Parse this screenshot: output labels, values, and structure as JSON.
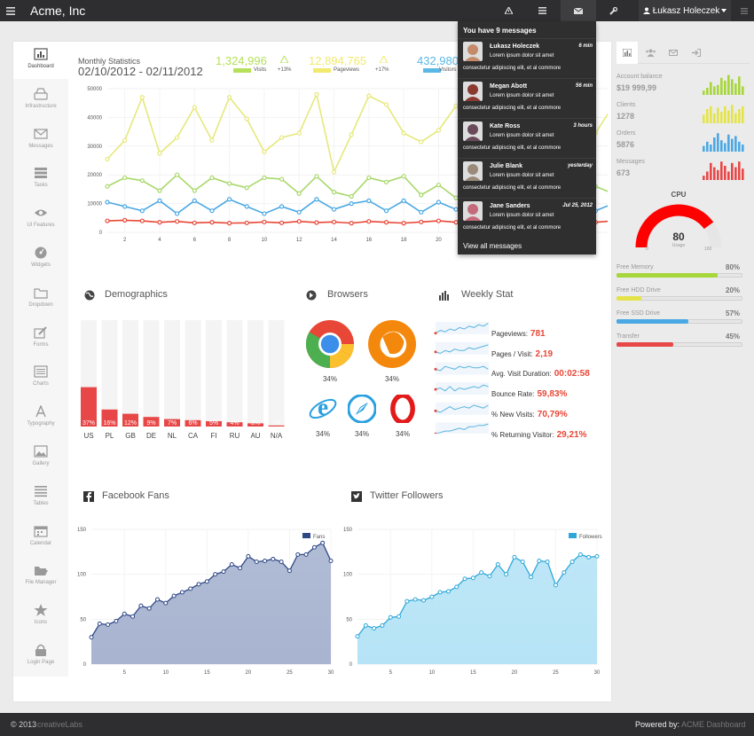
{
  "topbar": {
    "brand": "Acme, Inc",
    "user_name": "Łukasz Holeczek",
    "icons": [
      "menu-icon",
      "warning-icon",
      "list-icon",
      "envelope-icon",
      "wrench-icon",
      "menu-icon"
    ]
  },
  "sidebar": {
    "items": [
      {
        "label": "Dashboard",
        "icon": "bar-chart-icon"
      },
      {
        "label": "Infrastructure",
        "icon": "hdd-icon"
      },
      {
        "label": "Messages",
        "icon": "envelope-icon"
      },
      {
        "label": "Tasks",
        "icon": "tasks-icon"
      },
      {
        "label": "UI Features",
        "icon": "eye-icon"
      },
      {
        "label": "Widgets",
        "icon": "dashboard-icon"
      },
      {
        "label": "Dropdown",
        "icon": "folder-icon"
      },
      {
        "label": "Forms",
        "icon": "edit-icon"
      },
      {
        "label": "Charts",
        "icon": "list-alt-icon"
      },
      {
        "label": "Typography",
        "icon": "font-icon"
      },
      {
        "label": "Gallery",
        "icon": "picture-icon"
      },
      {
        "label": "Tables",
        "icon": "align-justify-icon"
      },
      {
        "label": "Calendar",
        "icon": "calendar-icon"
      },
      {
        "label": "File Manager",
        "icon": "folder-open-icon"
      },
      {
        "label": "Icons",
        "icon": "star-icon"
      },
      {
        "label": "Login Page",
        "icon": "lock-icon"
      }
    ]
  },
  "monthly": {
    "title": "Monthly Statistics",
    "date_range": "02/10/2012 - 02/11/2012",
    "stats": [
      {
        "value": "1,324,996",
        "label": "Visits",
        "change": "+13%",
        "color": "#b6e05a"
      },
      {
        "value": "12,894,765",
        "label": "Pageviews",
        "change": "+17%",
        "color": "#f0ea6e"
      },
      {
        "value": "432,980",
        "label": "Visitors",
        "change": "",
        "color": "#5bb8e6"
      }
    ]
  },
  "messages": {
    "header": "You have 9 messages",
    "view_all": "View all messages",
    "items": [
      {
        "name": "Łukasz Holeczek",
        "time": "6 min",
        "line1": "Lorem ipsum dolor sit amet",
        "line2": "consectetur adipiscing elit, et al commore",
        "avatar": "#c48a6a"
      },
      {
        "name": "Megan Abott",
        "time": "56 min",
        "line1": "Lorem ipsum dolor sit amet",
        "line2": "consectetur adipiscing elit, et al commore",
        "avatar": "#8a3a2e"
      },
      {
        "name": "Kate Ross",
        "time": "3 hours",
        "line1": "Lorem ipsum dolor sit amet",
        "line2": "consectetur adipiscing elit, et al commore",
        "avatar": "#6a4a5a"
      },
      {
        "name": "Julie Blank",
        "time": "yesterday",
        "line1": "Lorem ipsum dolor sit amet",
        "line2": "consectetur adipiscing elit, et al commore",
        "avatar": "#9a8a7a"
      },
      {
        "name": "Jane Sanders",
        "time": "Jul 25, 2012",
        "line1": "Lorem ipsum dolor sit amet",
        "line2": "consectetur adipiscing elit, et al commore",
        "avatar": "#c46a7a"
      }
    ]
  },
  "sections": {
    "demographics": "Demographics",
    "browsers": "Browsers",
    "weekly": "Weekly Stat",
    "facebook": "Facebook Fans",
    "twitter": "Twitter Followers"
  },
  "browsers": [
    {
      "name": "chrome",
      "pct": "34%"
    },
    {
      "name": "firefox",
      "pct": "34%"
    },
    {
      "name": "ie",
      "pct": "34%"
    },
    {
      "name": "safari",
      "pct": "34%"
    },
    {
      "name": "opera",
      "pct": "34%"
    }
  ],
  "weekly": [
    {
      "label": "Pageviews:",
      "value": "781"
    },
    {
      "label": "Pages / Visit:",
      "value": "2,19"
    },
    {
      "label": "Avg. Visit Duration:",
      "value": "00:02:58"
    },
    {
      "label": "Bounce Rate:",
      "value": "59,83%"
    },
    {
      "label": "% New Visits:",
      "value": "70,79%"
    },
    {
      "label": "% Returning Visitor:",
      "value": "29,21%"
    }
  ],
  "right_panel": {
    "tabs": [
      "bar-chart-icon",
      "group-icon",
      "envelope-icon",
      "sign-in-icon"
    ],
    "stats": [
      {
        "label": "Account balance",
        "value": "$19 999,99",
        "color": "#a6d63a"
      },
      {
        "label": "Clients",
        "value": "1278",
        "color": "#e4e44a"
      },
      {
        "label": "Orders",
        "value": "5876",
        "color": "#4aa8e4"
      },
      {
        "label": "Messages",
        "value": "673",
        "color": "#e84747"
      }
    ],
    "cpu": {
      "title": "CPU",
      "value": "80",
      "unit": "Usage",
      "min": "0",
      "max": "100",
      "fraction": 0.8
    },
    "bars": [
      {
        "label": "Free Memory",
        "pct": "80%",
        "value": 0.8,
        "color": "#a6d63a"
      },
      {
        "label": "Free HDD Drive",
        "pct": "20%",
        "value": 0.2,
        "color": "#e4e44a"
      },
      {
        "label": "Free SSD Drive",
        "pct": "57%",
        "value": 0.57,
        "color": "#4aa8e4"
      },
      {
        "label": "Transfer",
        "pct": "45%",
        "value": 0.45,
        "color": "#e84747"
      }
    ]
  },
  "footer": {
    "copyright": "© 2013",
    "company": "creativeLabs",
    "powered_label": "Powered by:",
    "powered_value": "ACME Dashboard"
  },
  "chart_data": [
    {
      "type": "line",
      "title": "Monthly Statistics",
      "x": [
        1,
        2,
        3,
        4,
        5,
        6,
        7,
        8,
        9,
        10,
        11,
        12,
        13,
        14,
        15,
        16,
        17,
        18,
        19,
        20,
        21,
        22,
        23,
        24,
        25,
        26,
        27,
        28,
        29,
        30
      ],
      "ylim": [
        0,
        50000
      ],
      "yticks": [
        0,
        10000,
        20000,
        30000,
        40000,
        50000
      ],
      "xticks": [
        2,
        4,
        6,
        8,
        10,
        12,
        14,
        16,
        18,
        20,
        22,
        24,
        26,
        28,
        30
      ],
      "series": [
        {
          "name": "Pageviews",
          "color": "#e6e87a",
          "values": [
            25500,
            32000,
            47000,
            27500,
            33000,
            43500,
            32000,
            47000,
            39500,
            28000,
            33000,
            34500,
            48000,
            21000,
            34000,
            47500,
            44500,
            34500,
            31500,
            35500,
            44000,
            38000,
            42000,
            39500,
            36500,
            31500,
            33000,
            36500,
            34500,
            44000
          ]
        },
        {
          "name": "Visits",
          "color": "#a8d86a",
          "values": [
            16000,
            19000,
            18000,
            14500,
            20000,
            14500,
            19000,
            17000,
            15500,
            19000,
            18500,
            13500,
            19500,
            14000,
            12500,
            19000,
            17500,
            19500,
            13000,
            16500,
            12000,
            15500,
            16000,
            13500,
            15000,
            17500,
            14500,
            12500,
            16000,
            13500
          ]
        },
        {
          "name": "Visitors",
          "color": "#4aa8e4",
          "values": [
            10500,
            9000,
            7500,
            11000,
            6500,
            11000,
            7500,
            11500,
            9000,
            6500,
            9000,
            7000,
            11500,
            8000,
            10000,
            11000,
            7500,
            11000,
            7000,
            10500,
            8000,
            11500,
            9000,
            7500,
            10500,
            7000,
            9500,
            11000,
            7500,
            10000
          ]
        },
        {
          "name": "",
          "color": "#e84737",
          "values": [
            4000,
            4200,
            4000,
            3500,
            3800,
            3300,
            3500,
            3200,
            3300,
            3600,
            3300,
            3800,
            3400,
            3600,
            3200,
            3800,
            3500,
            3200,
            3600,
            4000,
            3500,
            3800,
            3400,
            3800,
            3500,
            4200,
            3600,
            3800,
            3500,
            4000
          ]
        }
      ]
    },
    {
      "type": "bar",
      "title": "Demographics",
      "categories": [
        "US",
        "PL",
        "GB",
        "DE",
        "NL",
        "CA",
        "FI",
        "RU",
        "AU",
        "N/A"
      ],
      "values": [
        37,
        16,
        12,
        9,
        7,
        6,
        5,
        4,
        3,
        1
      ],
      "labels": [
        "37%",
        "16%",
        "12%",
        "9%",
        "7%",
        "6%",
        "5%",
        "4%",
        "3%",
        "1%"
      ],
      "ylim": [
        0,
        100
      ]
    },
    {
      "type": "area",
      "title": "Facebook Fans",
      "series": [
        {
          "name": "Fans",
          "color": "#2f4886",
          "fill": "#a8b4d0"
        }
      ],
      "x": [
        1,
        2,
        3,
        4,
        5,
        6,
        7,
        8,
        9,
        10,
        11,
        12,
        13,
        14,
        15,
        16,
        17,
        18,
        19,
        20,
        21,
        22,
        23,
        24,
        25,
        26,
        27,
        28,
        29,
        30
      ],
      "values": [
        30,
        45,
        44,
        48,
        56,
        53,
        65,
        62,
        72,
        68,
        76,
        80,
        84,
        89,
        92,
        100,
        103,
        111,
        107,
        120,
        114,
        115,
        117,
        114,
        104,
        122,
        122,
        130,
        135,
        115
      ],
      "ylim": [
        0,
        150
      ],
      "yticks": [
        0,
        50,
        100,
        150
      ],
      "xticks": [
        5,
        10,
        15,
        20,
        25,
        30
      ]
    },
    {
      "type": "area",
      "title": "Twitter Followers",
      "series": [
        {
          "name": "Followers",
          "color": "#2fa8d8",
          "fill": "#b6e4f6"
        }
      ],
      "x": [
        1,
        2,
        3,
        4,
        5,
        6,
        7,
        8,
        9,
        10,
        11,
        12,
        13,
        14,
        15,
        16,
        17,
        18,
        19,
        20,
        21,
        22,
        23,
        24,
        25,
        26,
        27,
        28,
        29,
        30
      ],
      "values": [
        31,
        43,
        40,
        43,
        52,
        53,
        70,
        72,
        71,
        75,
        80,
        81,
        86,
        95,
        96,
        102,
        98,
        111,
        100,
        119,
        114,
        97,
        115,
        114,
        88,
        102,
        114,
        122,
        119,
        120
      ],
      "ylim": [
        0,
        150
      ],
      "yticks": [
        0,
        50,
        100,
        150
      ],
      "xticks": [
        5,
        10,
        15,
        20,
        25,
        30
      ]
    }
  ]
}
